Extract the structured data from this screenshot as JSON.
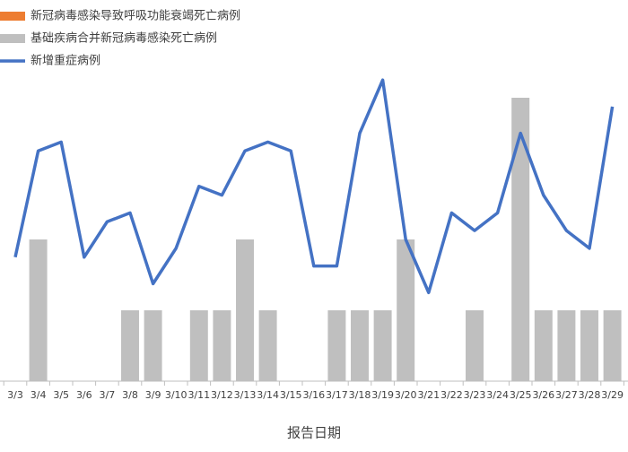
{
  "chart_data": {
    "type": "bar_line",
    "x_label": "报告日期",
    "categories": [
      "3/3",
      "3/4",
      "3/5",
      "3/6",
      "3/7",
      "3/8",
      "3/9",
      "3/10",
      "3/11",
      "3/12",
      "3/13",
      "3/14",
      "3/15",
      "3/16",
      "3/17",
      "3/18",
      "3/19",
      "3/20",
      "3/21",
      "3/22",
      "3/23",
      "3/24",
      "3/25",
      "3/26",
      "3/27",
      "3/28",
      "3/29"
    ],
    "series": [
      {
        "name": "新冠病毒感染导致呼吸功能衰竭死亡病例",
        "color": "#ed7d31",
        "kind": "bar",
        "values": [
          0,
          0,
          0,
          0,
          0,
          0,
          0,
          0,
          0,
          0,
          0,
          0,
          0,
          0,
          0,
          0,
          0,
          0,
          0,
          0,
          0,
          0,
          0,
          0,
          0,
          0,
          0
        ]
      },
      {
        "name": "基础疾病合并新冠病毒感染死亡病例",
        "color": "#bfbfbf",
        "kind": "bar",
        "values": [
          0,
          2,
          0,
          0,
          0,
          1,
          1,
          0,
          1,
          1,
          2,
          1,
          0,
          0,
          1,
          1,
          1,
          2,
          0,
          0,
          1,
          0,
          4,
          1,
          1,
          1,
          1
        ]
      },
      {
        "name": "新增重症病例",
        "color": "#4472c4",
        "kind": "line",
        "axis": "y2",
        "values": [
          14,
          26,
          27,
          14,
          18,
          19,
          11,
          15,
          22,
          21,
          26,
          27,
          26,
          13,
          13,
          28,
          34,
          16,
          10,
          19,
          17,
          19,
          28,
          21,
          17,
          15,
          31
        ]
      }
    ],
    "ylim": [
      0,
      5
    ],
    "y2lim": [
      0,
      40
    ],
    "stacked": true
  }
}
